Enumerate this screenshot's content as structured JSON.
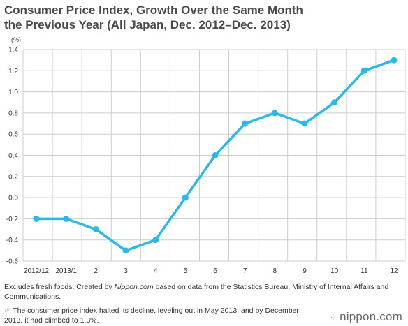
{
  "header": {
    "title_line1": "Consumer Price Index, Growth Over the Same Month",
    "title_line2": "the Previous Year (All Japan, Dec. 2012–Dec. 2013)"
  },
  "chart_data": {
    "type": "line",
    "title": "Consumer Price Index, Growth Over the Same Month the Previous Year (All Japan, Dec. 2012–Dec. 2013)",
    "ylabel": "(%)",
    "categories": [
      "2012/12",
      "2013/1",
      "2",
      "3",
      "4",
      "5",
      "6",
      "7",
      "8",
      "9",
      "10",
      "11",
      "12"
    ],
    "series": [
      {
        "values": [
          -0.2,
          -0.2,
          -0.3,
          -0.5,
          -0.4,
          0.0,
          0.4,
          0.7,
          0.8,
          0.7,
          0.9,
          1.2,
          1.3
        ]
      }
    ],
    "ylim": [
      -0.6,
      1.4
    ],
    "yticks": [
      "1.4",
      "1.2",
      "1.0",
      "0.8",
      "0.6",
      "0.4",
      "0.2",
      "0.0",
      "-0.2",
      "-0.4",
      "-0.6"
    ],
    "grid": true,
    "line_color": "#29b9ea"
  },
  "footer": {
    "note_pre": "Excludes fresh foods. Created by ",
    "note_source": "Nippon.com",
    "note_post": " based on data from the Statistics Bureau, Ministry of Internal Affairs and Communications.",
    "comment_icon": "pointing-hand-icon",
    "comment_glyph": "☞",
    "comment": "The consumer price index halted its decline, leveling out in May 2013, and by December 2013, it had climbed to 1.3%.",
    "brand": "nippon.com"
  }
}
